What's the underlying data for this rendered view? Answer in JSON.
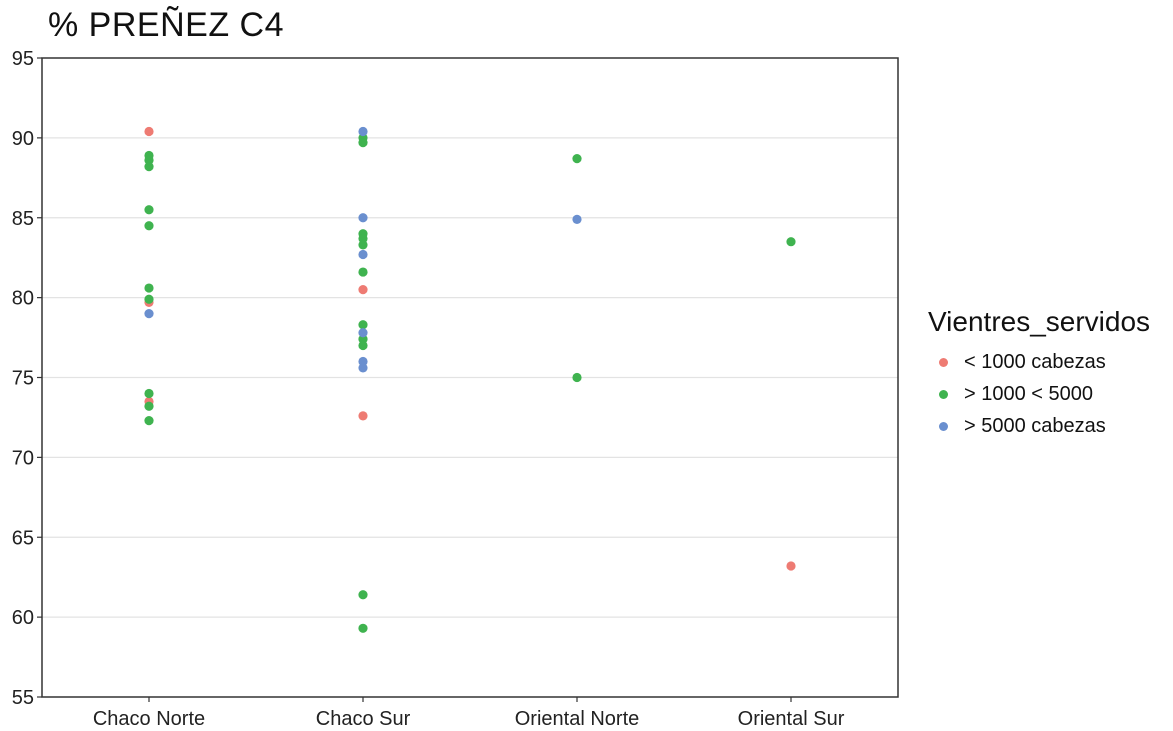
{
  "chart_data": {
    "type": "scatter",
    "title": "% PREÑEZ C4",
    "xlabel": "",
    "ylabel": "",
    "categories": [
      "Chaco Norte",
      "Chaco Sur",
      "Oriental Norte",
      "Oriental Sur"
    ],
    "ylim": [
      55,
      95
    ],
    "yticks": [
      55,
      60,
      65,
      70,
      75,
      80,
      85,
      90,
      95
    ],
    "grid": "horizontal",
    "legend": {
      "title": "Vientres_servidos",
      "placement": "right",
      "entries": [
        {
          "label": "< 1000 cabezas",
          "color": "#ee7b73"
        },
        {
          "label": "> 1000 < 5000",
          "color": "#3fb34f"
        },
        {
          "label": "> 5000 cabezas",
          "color": "#6a8fcf"
        }
      ]
    },
    "series": [
      {
        "name": "< 1000 cabezas",
        "color": "#ee7b73",
        "points": [
          {
            "x": "Chaco Norte",
            "y": 90.4
          },
          {
            "x": "Chaco Norte",
            "y": 79.7
          },
          {
            "x": "Chaco Norte",
            "y": 73.5
          },
          {
            "x": "Chaco Sur",
            "y": 80.5
          },
          {
            "x": "Chaco Sur",
            "y": 72.6
          },
          {
            "x": "Oriental Sur",
            "y": 63.2
          }
        ]
      },
      {
        "name": "> 1000 < 5000",
        "color": "#3fb34f",
        "points": [
          {
            "x": "Chaco Norte",
            "y": 88.9
          },
          {
            "x": "Chaco Norte",
            "y": 88.6
          },
          {
            "x": "Chaco Norte",
            "y": 88.2
          },
          {
            "x": "Chaco Norte",
            "y": 85.5
          },
          {
            "x": "Chaco Norte",
            "y": 84.5
          },
          {
            "x": "Chaco Norte",
            "y": 80.6
          },
          {
            "x": "Chaco Norte",
            "y": 79.9
          },
          {
            "x": "Chaco Norte",
            "y": 74.0
          },
          {
            "x": "Chaco Norte",
            "y": 73.2
          },
          {
            "x": "Chaco Norte",
            "y": 72.3
          },
          {
            "x": "Chaco Sur",
            "y": 90.0
          },
          {
            "x": "Chaco Sur",
            "y": 89.7
          },
          {
            "x": "Chaco Sur",
            "y": 84.0
          },
          {
            "x": "Chaco Sur",
            "y": 83.7
          },
          {
            "x": "Chaco Sur",
            "y": 83.3
          },
          {
            "x": "Chaco Sur",
            "y": 81.6
          },
          {
            "x": "Chaco Sur",
            "y": 78.3
          },
          {
            "x": "Chaco Sur",
            "y": 77.4
          },
          {
            "x": "Chaco Sur",
            "y": 77.0
          },
          {
            "x": "Chaco Sur",
            "y": 61.4
          },
          {
            "x": "Chaco Sur",
            "y": 59.3
          },
          {
            "x": "Oriental Norte",
            "y": 88.7
          },
          {
            "x": "Oriental Norte",
            "y": 75.0
          },
          {
            "x": "Oriental Sur",
            "y": 83.5
          }
        ]
      },
      {
        "name": "> 5000 cabezas",
        "color": "#6a8fcf",
        "points": [
          {
            "x": "Chaco Norte",
            "y": 79.0
          },
          {
            "x": "Chaco Sur",
            "y": 90.4
          },
          {
            "x": "Chaco Sur",
            "y": 85.0
          },
          {
            "x": "Chaco Sur",
            "y": 82.7
          },
          {
            "x": "Chaco Sur",
            "y": 77.8
          },
          {
            "x": "Chaco Sur",
            "y": 76.0
          },
          {
            "x": "Chaco Sur",
            "y": 75.6
          },
          {
            "x": "Oriental Norte",
            "y": 84.9
          }
        ]
      }
    ]
  }
}
